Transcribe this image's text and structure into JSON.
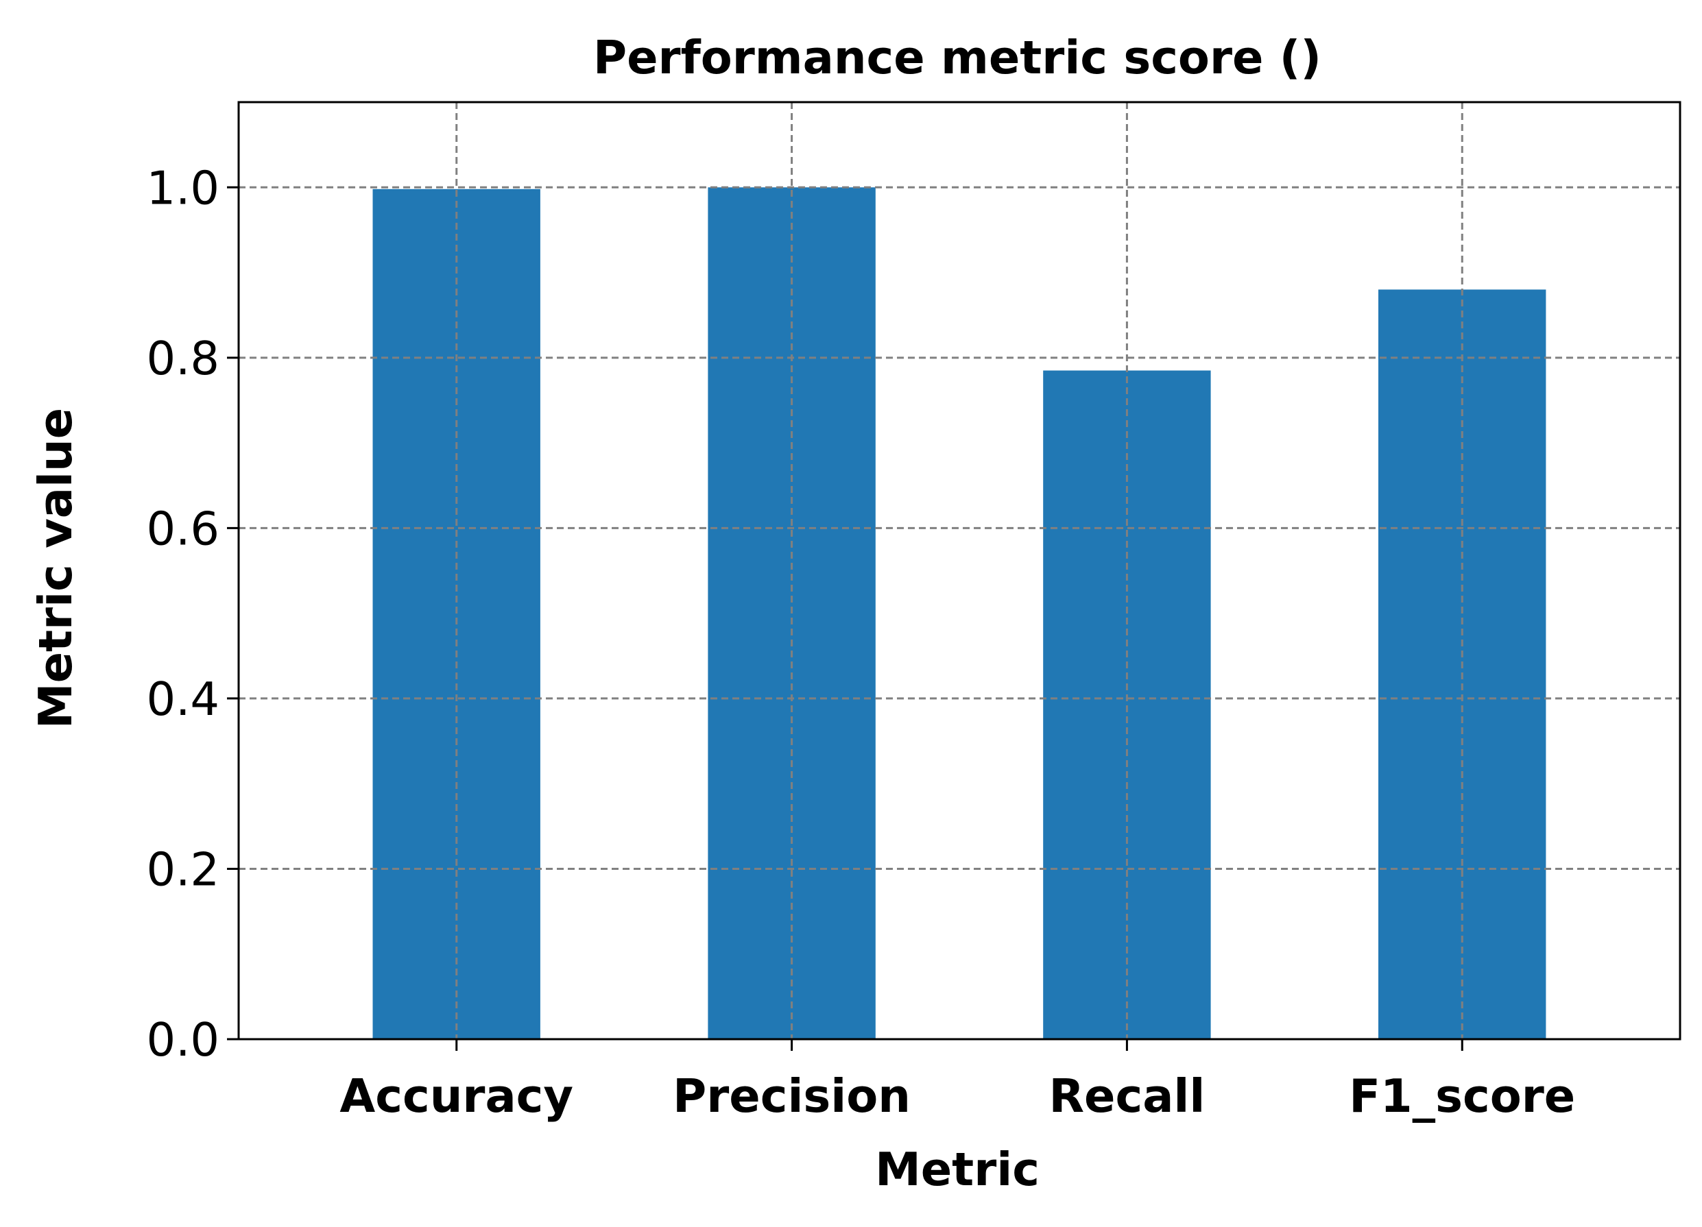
{
  "chart_data": {
    "type": "bar",
    "title": "Performance metric score ()",
    "xlabel": "Metric",
    "ylabel": "Metric value",
    "categories": [
      "Accuracy",
      "Precision",
      "Recall",
      "F1_score"
    ],
    "values": [
      0.998,
      1.0,
      0.785,
      0.88
    ],
    "ylim": [
      0,
      1.1
    ],
    "yticks": [
      "0.0",
      "0.2",
      "0.4",
      "0.6",
      "0.8",
      "1.0"
    ],
    "grid": true,
    "bar_color": "#2178b4",
    "grid_color": "#808080"
  }
}
